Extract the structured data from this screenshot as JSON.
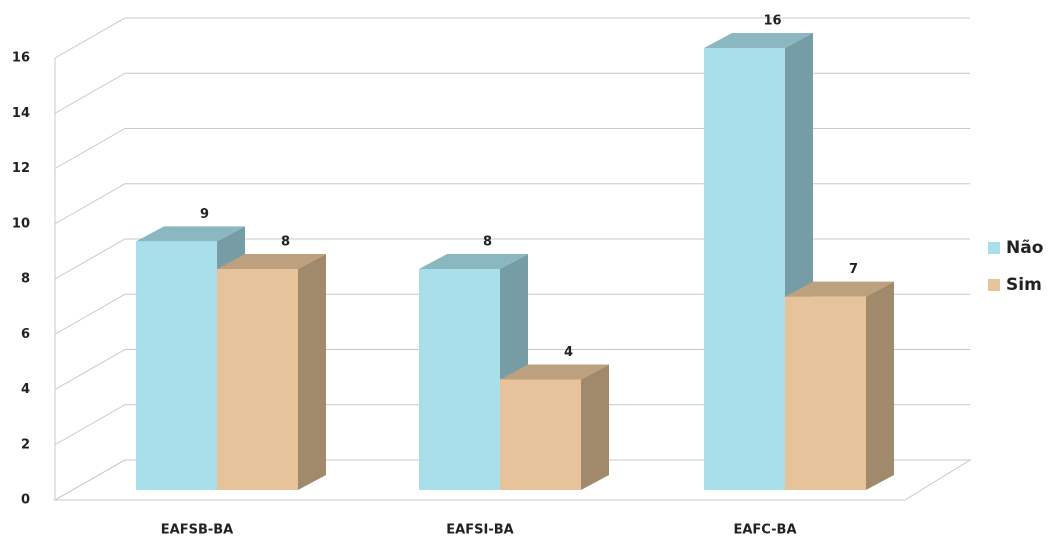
{
  "chart_data": {
    "type": "bar3d",
    "categories": [
      "EAFSB-BA",
      "EAFSI-BA",
      "EAFC-BA"
    ],
    "series": [
      {
        "name": "Não",
        "color": "#a9dfeb",
        "values": [
          9,
          8,
          16
        ]
      },
      {
        "name": "Sim",
        "color": "#e6c39a",
        "values": [
          8,
          4,
          7
        ]
      }
    ],
    "ylim": [
      0,
      16
    ],
    "yticks": [
      0,
      2,
      4,
      6,
      8,
      10,
      12,
      14,
      16
    ],
    "grid": true,
    "legend": "right"
  }
}
